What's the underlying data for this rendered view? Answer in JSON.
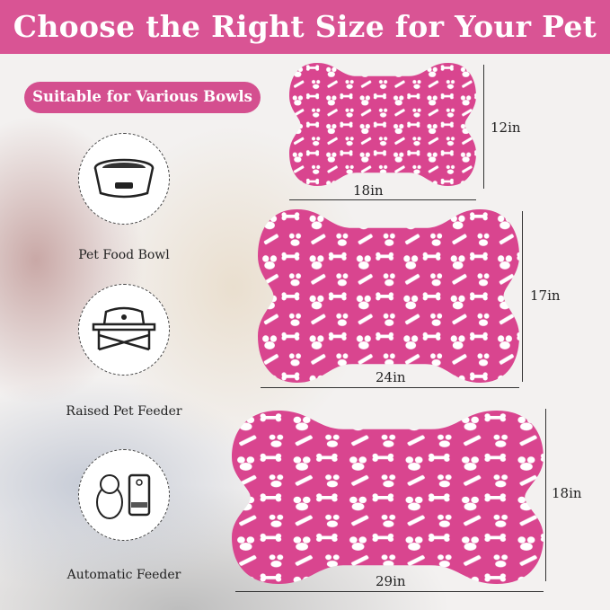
{
  "header": {
    "title": "Choose the Right Size for Your Pet"
  },
  "badge": {
    "label": "Suitable for Various Bowls"
  },
  "uses": [
    {
      "label": "Pet Food Bowl",
      "icon": "pet-food-bowl-icon"
    },
    {
      "label": "Raised Pet Feeder",
      "icon": "raised-pet-feeder-icon"
    },
    {
      "label": "Automatic Feeder",
      "icon": "automatic-feeder-icon"
    }
  ],
  "sizes": [
    {
      "width": "18in",
      "height": "12in"
    },
    {
      "width": "24in",
      "height": "17in"
    },
    {
      "width": "29in",
      "height": "18in"
    }
  ],
  "colors": {
    "brand": "#d95494",
    "mat": "#d9458f",
    "pattern": "#ffffff"
  }
}
